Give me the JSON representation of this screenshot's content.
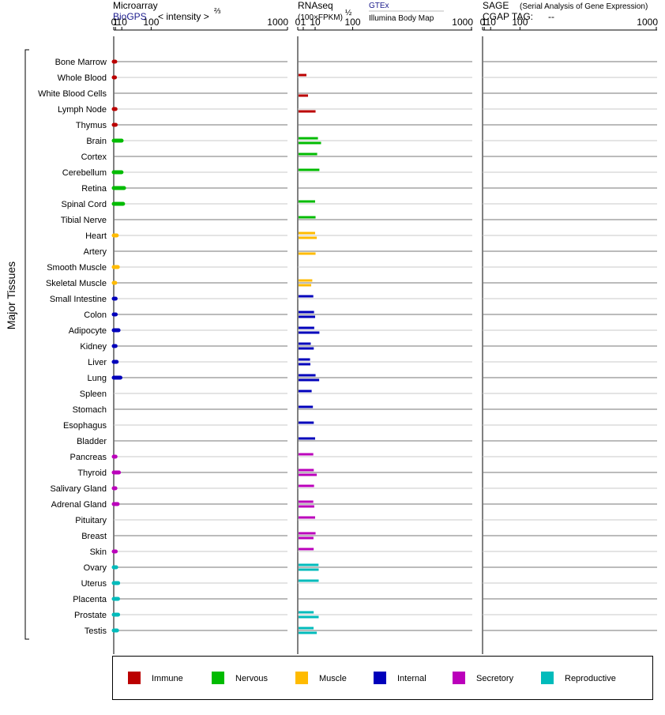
{
  "headers": {
    "microarray": {
      "title": "Microarray",
      "source": "BioGPS",
      "metric": "< intensity >",
      "metric_exp": "⅔"
    },
    "rnaseq": {
      "title": "RNAseq",
      "metric": "(100×FPKM)",
      "metric_exp": "½",
      "source_gtex": "GTEx",
      "source_ibm": "Illumina Body Map"
    },
    "sage": {
      "title": "SAGE",
      "subtitle": "(Serial Analysis of Gene Expression)",
      "tag_label": "CGAP TAG:",
      "tag_value": "--"
    }
  },
  "y_axis_title": "Major Tissues",
  "colors": {
    "Immune": "#bb0000",
    "Nervous": "#00bb00",
    "Muscle": "#ffbb00",
    "Internal": "#0000bb",
    "Secretory": "#bb00bb",
    "Reproductive": "#00bbbb"
  },
  "legend": [
    "Immune",
    "Nervous",
    "Muscle",
    "Internal",
    "Secretory",
    "Reproductive"
  ],
  "chart_data": [
    {
      "type": "bar",
      "id": "microarray",
      "scale": "power 2/3",
      "xlim": [
        0,
        1000
      ],
      "ticks": [
        "0",
        "1",
        "10",
        "100",
        "1000"
      ],
      "categories": [
        "Bone Marrow",
        "Whole Blood",
        "White Blood Cells",
        "Lymph Node",
        "Thymus",
        "Brain",
        "Cortex",
        "Cerebellum",
        "Retina",
        "Spinal Cord",
        "Tibial Nerve",
        "Heart",
        "Artery",
        "Smooth Muscle",
        "Skeletal Muscle",
        "Small Intestine",
        "Colon",
        "Adipocyte",
        "Kidney",
        "Liver",
        "Lung",
        "Spleen",
        "Stomach",
        "Esophagus",
        "Bladder",
        "Pancreas",
        "Thyroid",
        "Salivary Gland",
        "Adrenal Gland",
        "Pituitary",
        "Breast",
        "Skin",
        "Ovary",
        "Uterus",
        "Placenta",
        "Prostate",
        "Testis"
      ],
      "groups": [
        "Immune",
        "Immune",
        "Immune",
        "Immune",
        "Immune",
        "Nervous",
        "Nervous",
        "Nervous",
        "Nervous",
        "Nervous",
        "Nervous",
        "Muscle",
        "Muscle",
        "Muscle",
        "Muscle",
        "Internal",
        "Internal",
        "Internal",
        "Internal",
        "Internal",
        "Internal",
        "Internal",
        "Internal",
        "Internal",
        "Internal",
        "Secretory",
        "Secretory",
        "Secretory",
        "Secretory",
        "Secretory",
        "Secretory",
        "Secretory",
        "Reproductive",
        "Reproductive",
        "Reproductive",
        "Reproductive",
        "Reproductive"
      ],
      "values": [
        0.85,
        0.6,
        null,
        1.05,
        1.2,
        9.7,
        null,
        9.5,
        14.5,
        12.5,
        null,
        2.3,
        null,
        3.6,
        0.8,
        1.15,
        1.25,
        4.6,
        1.1,
        2.2,
        7.6,
        null,
        null,
        null,
        null,
        1.05,
        5.2,
        0.95,
        3.35,
        null,
        null,
        1.25,
        1.7,
        4.1,
        3.9,
        4.0,
        2.6
      ]
    },
    {
      "type": "bar",
      "id": "rnaseq",
      "scale": "power 1/2",
      "xlim": [
        0,
        1000
      ],
      "ticks": [
        "0",
        "1",
        "10",
        "100",
        "1000"
      ],
      "series": [
        {
          "name": "GTEx",
          "values": [
            null,
            2.5,
            null,
            null,
            null,
            13.5,
            12.5,
            15.5,
            null,
            10.0,
            10.5,
            10.0,
            null,
            null,
            7.0,
            8.0,
            8.8,
            9.0,
            5.6,
            5.0,
            10.5,
            6.4,
            7.6,
            8.5,
            10.0,
            8.0,
            8.5,
            8.8,
            8.0,
            10.0,
            10.5,
            8.4,
            14.3,
            14.5,
            null,
            8.4,
            8.3
          ]
        },
        {
          "name": "Illumina Body Map",
          "values": [
            null,
            null,
            3.5,
            10.5,
            null,
            18.0,
            null,
            null,
            null,
            null,
            null,
            12.0,
            10.5,
            null,
            6.0,
            null,
            10.0,
            15.5,
            8.5,
            5.3,
            15.2,
            null,
            null,
            null,
            null,
            null,
            12.0,
            null,
            9.0,
            null,
            8.2,
            null,
            14.5,
            null,
            null,
            14.5,
            12.0
          ]
        }
      ]
    },
    {
      "type": "bar",
      "id": "sage",
      "xlim": [
        0,
        1000
      ],
      "ticks": [
        "0",
        "1",
        "10",
        "100",
        "1000"
      ],
      "values": []
    }
  ]
}
